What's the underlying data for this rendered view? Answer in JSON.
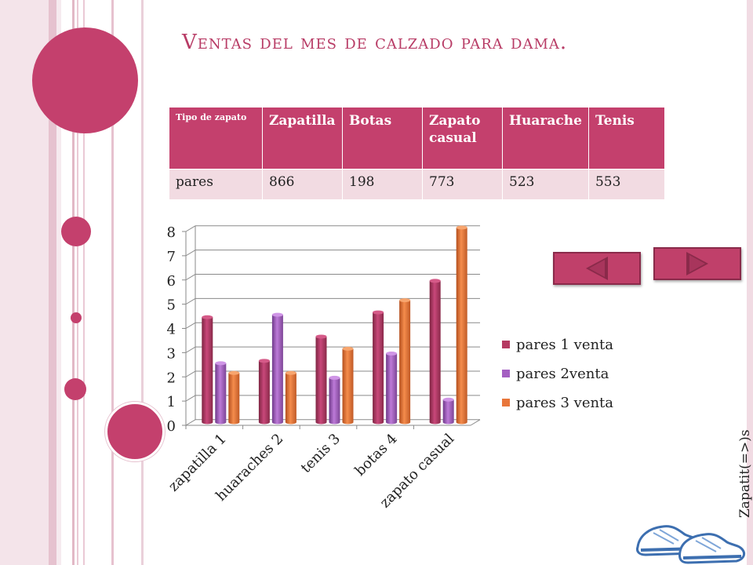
{
  "title": "Ventas del mes de calzado para dama.",
  "table": {
    "header": [
      "Tipo de zapato",
      "Zapatilla",
      "Botas",
      "Zapato casual",
      "Huarache",
      "Tenis"
    ],
    "row": [
      "pares",
      "866",
      "198",
      "773",
      "523",
      "553"
    ]
  },
  "nav": {
    "prev_icon": "triangle-left-icon",
    "next_icon": "triangle-right-icon"
  },
  "side_label": "Zapatit(=>)s",
  "shoes_image": "sneakers-icon",
  "colors": {
    "accent": "#c4406d",
    "series1": "#b53a62",
    "series2": "#a45fc2",
    "series3": "#e8763a"
  },
  "chart_data": {
    "type": "bar",
    "categories": [
      "zapatilla 1",
      "huaraches 2",
      "tenis  3",
      "botas  4",
      "zapato casual"
    ],
    "series": [
      {
        "name": "pares 1 venta",
        "values": [
          4.3,
          2.5,
          3.5,
          4.5,
          5.8
        ]
      },
      {
        "name": "pares  2venta",
        "values": [
          2.4,
          4.4,
          1.8,
          2.8,
          0.9
        ]
      },
      {
        "name": "pares 3 venta",
        "values": [
          2.0,
          2.0,
          3.0,
          5.0,
          8.0
        ]
      }
    ],
    "ylim": [
      0,
      8
    ],
    "yticks": [
      "0",
      "1",
      "2",
      "3",
      "4",
      "5",
      "6",
      "7",
      "8"
    ],
    "grid": true,
    "legend": "right",
    "style": "3d-cylinder"
  }
}
